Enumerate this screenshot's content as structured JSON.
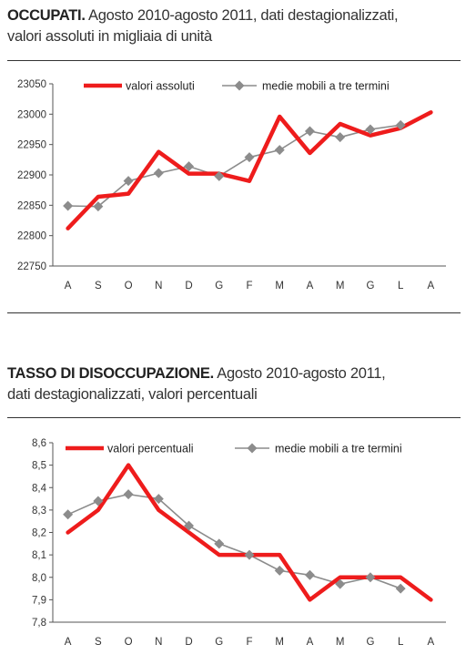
{
  "sections": [
    {
      "title_bold": "OCCUPATI.",
      "title_line1": " Agosto 2010-agosto 2011, dati destagionalizzati,",
      "title_line2": "valori assoluti in migliaia di unità"
    },
    {
      "title_bold": "TASSO DI DISOCCUPAZIONE.",
      "title_line1": " Agosto 2010-agosto 2011,",
      "title_line2": "dati destagionalizzati, valori percentuali"
    }
  ],
  "colors": {
    "primary": "#ee1c1c",
    "secondary": "#8c8c8c",
    "axis": "#555555"
  },
  "chart_data": [
    {
      "type": "line",
      "categories": [
        "A",
        "S",
        "O",
        "N",
        "D",
        "G",
        "F",
        "M",
        "A",
        "M",
        "G",
        "L",
        "A"
      ],
      "ylim": [
        22750,
        23050
      ],
      "yticks": [
        22750,
        22800,
        22850,
        22900,
        22950,
        23000,
        23050
      ],
      "ytick_labels": [
        "22750",
        "22800",
        "22850",
        "22900",
        "22950",
        "23000",
        "23050"
      ],
      "series": [
        {
          "name": "valori assoluti",
          "marker": "none",
          "values": [
            22812,
            22864,
            22869,
            22938,
            22902,
            22902,
            22890,
            22996,
            22936,
            22984,
            22965,
            22977,
            23003
          ]
        },
        {
          "name": "medie mobili a tre termini",
          "marker": "diamond",
          "values": [
            22849,
            22848,
            22890,
            22903,
            22914,
            22898,
            22929,
            22941,
            22972,
            22962,
            22975,
            22982,
            null
          ]
        }
      ],
      "legend_position": "top"
    },
    {
      "type": "line",
      "categories": [
        "A",
        "S",
        "O",
        "N",
        "D",
        "G",
        "F",
        "M",
        "A",
        "M",
        "G",
        "L",
        "A"
      ],
      "ylim": [
        7.8,
        8.6
      ],
      "yticks": [
        7.8,
        7.9,
        8.0,
        8.1,
        8.2,
        8.3,
        8.4,
        8.5,
        8.6
      ],
      "ytick_labels": [
        "7,8",
        "7,9",
        "8,0",
        "8,1",
        "8,2",
        "8,3",
        "8,4",
        "8,5",
        "8,6"
      ],
      "series": [
        {
          "name": "valori percentuali",
          "marker": "none",
          "values": [
            8.2,
            8.3,
            8.5,
            8.3,
            8.2,
            8.1,
            8.1,
            8.1,
            7.9,
            8.0,
            8.0,
            8.0,
            7.9
          ]
        },
        {
          "name": "medie mobili a tre termini",
          "marker": "diamond",
          "values": [
            8.28,
            8.34,
            8.37,
            8.35,
            8.23,
            8.15,
            8.1,
            8.03,
            8.01,
            7.97,
            8.0,
            7.95,
            null
          ]
        }
      ],
      "legend_position": "top"
    }
  ]
}
